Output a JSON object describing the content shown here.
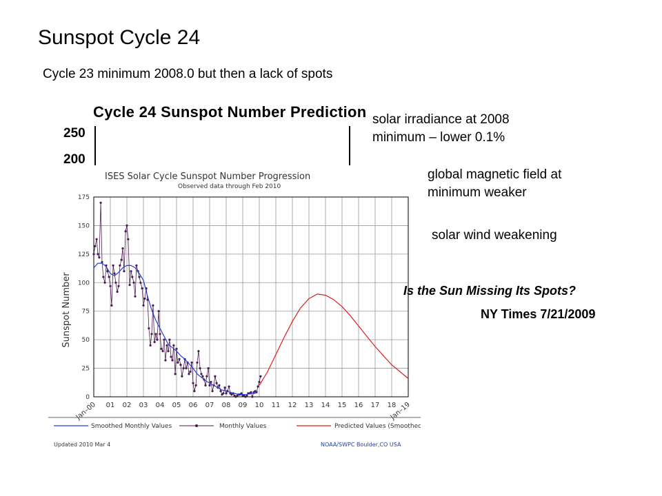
{
  "slide": {
    "title": "Sunspot Cycle 24",
    "subtitle": "Cycle 23 minimum 2008.0 but then a lack of spots",
    "notes": [
      "solar irradiance at 2008",
      "minimum – lower 0.1%",
      "global magnetic field at",
      "minimum weaker",
      "solar wind weakening"
    ],
    "nyt_headline": "Is the Sun Missing Its Spots?",
    "nyt_date": "NY Times 7/21/2009"
  },
  "background_chart": {
    "title": "Cycle 24 Sunspot Number Prediction",
    "ticks": [
      "250",
      "200"
    ]
  },
  "chart_data": {
    "type": "line",
    "title": "ISES Solar Cycle Sunspot Number Progression",
    "subtitle": "Observed data through Feb 2010",
    "ylabel": "Sunspot Number",
    "xlabel": "",
    "xlim": [
      2000.0,
      2019.0
    ],
    "ylim": [
      0,
      175
    ],
    "grid": true,
    "yticks": [
      0,
      25,
      50,
      75,
      100,
      125,
      150,
      175
    ],
    "xtick_labels": [
      "Jan–00",
      "01",
      "02",
      "03",
      "04",
      "05",
      "06",
      "07",
      "08",
      "09",
      "10",
      "11",
      "12",
      "13",
      "14",
      "15",
      "16",
      "17",
      "18",
      "Jan–19"
    ],
    "legend": [
      "Smoothed Monthly Values",
      "Monthly Values",
      "Predicted Values (Smoothed)"
    ],
    "footer_left": "Updated 2010 Mar  4",
    "footer_right": "NOAA/SWPC Boulder,CO USA",
    "colors": {
      "monthly": "#4b1a4f",
      "smoothed": "#1f3fd6",
      "predicted": "#e01b1b",
      "grid": "#9a9a9a"
    },
    "series": [
      {
        "name": "Monthly Values",
        "x": [
          2000.0,
          2000.08,
          2000.17,
          2000.25,
          2000.33,
          2000.42,
          2000.5,
          2000.58,
          2000.67,
          2000.75,
          2000.83,
          2000.92,
          2001.0,
          2001.08,
          2001.17,
          2001.25,
          2001.33,
          2001.42,
          2001.5,
          2001.58,
          2001.67,
          2001.75,
          2001.83,
          2001.92,
          2002.0,
          2002.08,
          2002.17,
          2002.25,
          2002.33,
          2002.42,
          2002.5,
          2002.58,
          2002.67,
          2002.75,
          2002.83,
          2002.92,
          2003.0,
          2003.08,
          2003.17,
          2003.25,
          2003.33,
          2003.42,
          2003.5,
          2003.58,
          2003.67,
          2003.75,
          2003.83,
          2003.92,
          2004.0,
          2004.08,
          2004.17,
          2004.25,
          2004.33,
          2004.42,
          2004.5,
          2004.58,
          2004.67,
          2004.75,
          2004.83,
          2004.92,
          2005.0,
          2005.08,
          2005.17,
          2005.25,
          2005.33,
          2005.42,
          2005.5,
          2005.58,
          2005.67,
          2005.75,
          2005.83,
          2005.92,
          2006.0,
          2006.08,
          2006.17,
          2006.25,
          2006.33,
          2006.42,
          2006.5,
          2006.58,
          2006.67,
          2006.75,
          2006.83,
          2006.92,
          2007.0,
          2007.08,
          2007.17,
          2007.25,
          2007.33,
          2007.42,
          2007.5,
          2007.58,
          2007.67,
          2007.75,
          2007.83,
          2007.92,
          2008.0,
          2008.08,
          2008.17,
          2008.25,
          2008.33,
          2008.42,
          2008.5,
          2008.58,
          2008.67,
          2008.75,
          2008.83,
          2008.92,
          2009.0,
          2009.08,
          2009.17,
          2009.25,
          2009.33,
          2009.42,
          2009.5,
          2009.58,
          2009.67,
          2009.75,
          2009.83,
          2009.92,
          2010.0,
          2010.08
        ],
        "values": [
          125,
          132,
          138,
          125,
          122,
          170,
          118,
          105,
          100,
          115,
          110,
          105,
          97,
          80,
          115,
          108,
          100,
          92,
          97,
          115,
          120,
          130,
          110,
          145,
          150,
          138,
          98,
          110,
          105,
          100,
          88,
          115,
          110,
          105,
          100,
          95,
          80,
          86,
          95,
          85,
          60,
          45,
          55,
          80,
          48,
          55,
          50,
          75,
          55,
          42,
          40,
          50,
          32,
          45,
          40,
          50,
          35,
          32,
          45,
          20,
          42,
          30,
          33,
          28,
          18,
          25,
          33,
          25,
          30,
          20,
          22,
          30,
          12,
          5,
          10,
          30,
          40,
          25,
          20,
          18,
          15,
          10,
          18,
          25,
          10,
          13,
          5,
          10,
          18,
          12,
          8,
          10,
          5,
          2,
          3,
          8,
          3,
          5,
          9,
          3,
          2,
          3,
          1,
          0,
          1,
          2,
          2,
          3,
          1,
          1,
          0,
          1,
          3,
          3,
          4,
          0,
          4,
          5,
          4,
          9,
          13,
          18
        ]
      },
      {
        "name": "Smoothed Monthly Values",
        "x": [
          2000.0,
          2000.25,
          2000.5,
          2000.75,
          2001.0,
          2001.25,
          2001.5,
          2001.75,
          2002.0,
          2002.25,
          2002.5,
          2002.75,
          2003.0,
          2003.25,
          2003.5,
          2003.75,
          2004.0,
          2004.25,
          2004.5,
          2004.75,
          2005.0,
          2005.25,
          2005.5,
          2005.75,
          2006.0,
          2006.25,
          2006.5,
          2006.75,
          2007.0,
          2007.25,
          2007.5,
          2007.75,
          2008.0,
          2008.25,
          2008.5,
          2008.75,
          2009.0,
          2009.25,
          2009.5,
          2009.75,
          2009.9
        ],
        "values": [
          113,
          117,
          117,
          114,
          108,
          106,
          109,
          113,
          115,
          115,
          113,
          108,
          102,
          88,
          76,
          67,
          60,
          53,
          46,
          43,
          40,
          36,
          33,
          29,
          25,
          20,
          17,
          14,
          12,
          10,
          8,
          6,
          5,
          4,
          3,
          2,
          2,
          2,
          3,
          3,
          5
        ]
      },
      {
        "name": "Predicted Values (Smoothed)",
        "x": [
          2010.0,
          2010.5,
          2011.0,
          2011.5,
          2012.0,
          2012.5,
          2013.0,
          2013.5,
          2014.0,
          2014.5,
          2015.0,
          2015.5,
          2016.0,
          2016.5,
          2017.0,
          2017.5,
          2018.0,
          2018.5,
          2019.0
        ],
        "values": [
          10,
          22,
          37,
          52,
          66,
          78,
          86,
          90,
          89,
          85,
          79,
          71,
          62,
          53,
          44,
          36,
          28,
          22,
          16
        ]
      }
    ]
  }
}
